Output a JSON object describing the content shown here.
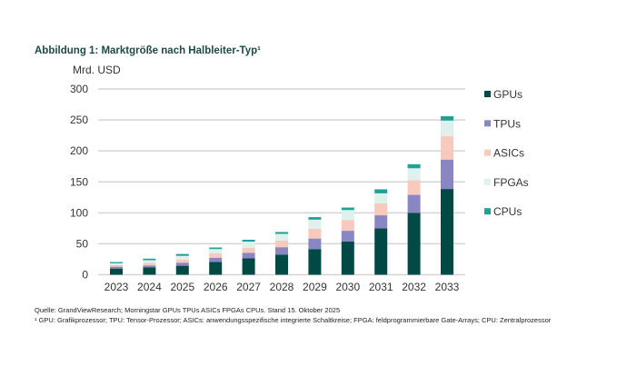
{
  "chart_data": {
    "type": "bar",
    "stacked": true,
    "title": "Abbildung 1: Marktgröße nach Halbleiter-Typ¹",
    "ylabel": "Mrd. USD",
    "xlabel": "",
    "ylim": [
      0,
      300
    ],
    "yticks": [
      0,
      50,
      100,
      150,
      200,
      250,
      300
    ],
    "grid": true,
    "legend_position": "right",
    "categories": [
      "2023",
      "2024",
      "2025",
      "2026",
      "2027",
      "2028",
      "2029",
      "2030",
      "2031",
      "2032",
      "2033"
    ],
    "series": [
      {
        "name": "GPUs",
        "color": "#004a45",
        "values": [
          10,
          12,
          14.5,
          20.5,
          26.5,
          32.5,
          41.5,
          53.5,
          75,
          100,
          138.5
        ]
      },
      {
        "name": "TPUs",
        "color": "#8a86c4",
        "values": [
          3,
          3,
          5,
          7,
          9,
          12,
          17,
          17.5,
          21,
          29,
          47.5
        ]
      },
      {
        "name": "ASICs",
        "color": "#f8c9bd",
        "values": [
          2.5,
          4,
          5,
          7,
          8,
          10.5,
          16,
          17.5,
          19.5,
          23.5,
          38
        ]
      },
      {
        "name": "FPGAs",
        "color": "#def1ec",
        "values": [
          3,
          4.5,
          6,
          7,
          10,
          11,
          14.5,
          16,
          16,
          19.5,
          25
        ]
      },
      {
        "name": "CPUs",
        "color": "#1fa196",
        "values": [
          2,
          2.5,
          3,
          2.5,
          3,
          3,
          4,
          4,
          6.5,
          6.5,
          7
        ]
      }
    ]
  },
  "footnotes": {
    "source": "Quelle: GrandViewResearch; Morningstar GPUs TPUs ASICs FPGAs CPUs. Stand 15. Oktober 2025",
    "definitions": "¹ GPU: Grafikprozessor; TPU: Tensor-Prozessor; ASICs: anwendungsspezifische integrierte Schaltkreise; FPGA: feldprogrammierbare Gate-Arrays; CPU: Zentralprozessor"
  }
}
